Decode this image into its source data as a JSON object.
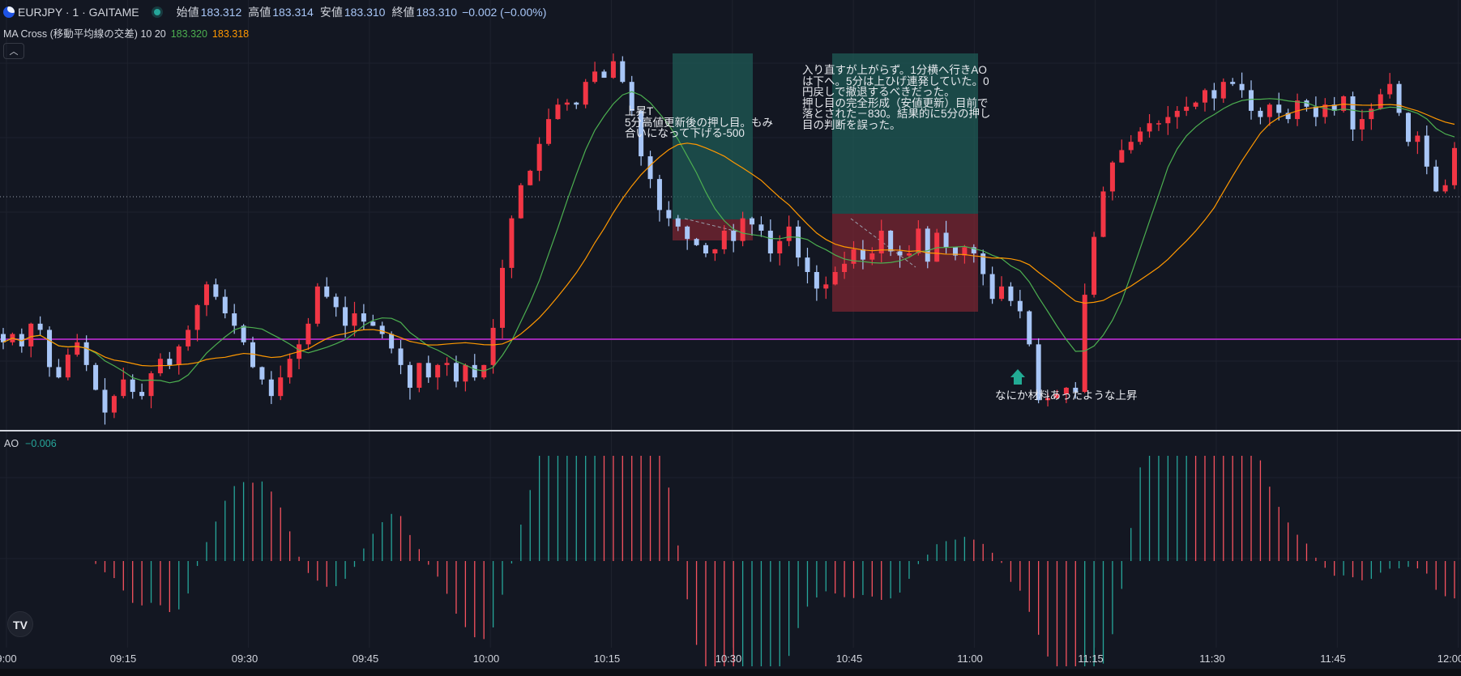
{
  "header": {
    "symbol": "EURJPY · 1 · GAITAME",
    "open_label": "始値",
    "open_value": "183.312",
    "high_label": "高値",
    "high_value": "183.314",
    "low_label": "安値",
    "low_value": "183.310",
    "close_label": "終値",
    "close_value": "183.310",
    "change": "−0.002 (−0.00%)"
  },
  "indicator": {
    "name": "MA Cross (移動平均線の交差) 10 20",
    "fast_value": "183.320",
    "slow_value": "183.318",
    "fast_color": "#4caf50",
    "slow_color": "#ff9800"
  },
  "collapse_icon": "chevron-up-icon",
  "notes": {
    "note1": "上昇T\n5分高値更新後の押し目。もみ\n合いになって下げる-500",
    "note2": "入り直すが上がらず。1分横へ行きAO\nは下へ。5分は上ひげ連発していた。0\n円戻しで撤退するべきだった。\n押し目の完全形成（安値更新）目前で\n落とされた－830。結果的に5分の押し\n目の判断を誤った。",
    "note3": "なにか材料あったような上昇"
  },
  "ao": {
    "label": "AO",
    "value": "−0.006"
  },
  "time_axis": [
    "9:00",
    "09:15",
    "09:30",
    "09:45",
    "10:00",
    "10:15",
    "10:30",
    "10:45",
    "11:00",
    "11:15",
    "11:30",
    "11:45",
    "12:00"
  ],
  "colors": {
    "background": "#131722",
    "candle_up": "#f23645",
    "candle_down": "#a8c6f7",
    "ao_up": "#26a69a",
    "ao_down": "#f7525f",
    "support_line": "#9c27b0",
    "long_target": "#1f5b56",
    "short_stop": "#7a2632"
  },
  "chart_data": {
    "type": "candlestick",
    "close_series": [
      183.262,
      183.266,
      183.26,
      183.271,
      183.268,
      183.25,
      183.245,
      183.256,
      183.262,
      183.251,
      183.239,
      183.228,
      183.236,
      183.244,
      183.238,
      183.236,
      183.247,
      183.254,
      183.251,
      183.26,
      183.268,
      183.28,
      183.29,
      183.284,
      183.276,
      183.27,
      183.262,
      183.25,
      183.244,
      183.236,
      183.245,
      183.254,
      183.261,
      183.271,
      183.289,
      183.284,
      183.279,
      183.27,
      183.276,
      183.272,
      183.27,
      183.266,
      183.259,
      183.251,
      183.24,
      183.252,
      183.245,
      183.251,
      183.252,
      183.243,
      183.251,
      183.245,
      183.251,
      183.269,
      183.298,
      183.322,
      183.338,
      183.345,
      183.358,
      183.37,
      183.377,
      183.378,
      183.377,
      183.388,
      183.393,
      183.39,
      183.398,
      183.388,
      183.374,
      183.352,
      183.341,
      183.326,
      183.322,
      183.318,
      183.312,
      183.309,
      183.305,
      183.307,
      183.316,
      183.311,
      183.322,
      183.319,
      183.316,
      183.305,
      183.311,
      183.318,
      183.303,
      183.296,
      183.288,
      183.29,
      183.296,
      183.3,
      183.307,
      183.302,
      183.305,
      183.316,
      183.306,
      183.304,
      183.305,
      183.317,
      183.301,
      183.315,
      183.308,
      183.304,
      183.308,
      183.305,
      183.295,
      183.283,
      183.289,
      183.282,
      183.277,
      183.261,
      183.234,
      183.235,
      183.237,
      183.24,
      183.238,
      183.285,
      183.313,
      183.335,
      183.349,
      183.355,
      183.359,
      183.364,
      183.368,
      183.368,
      183.371,
      183.374,
      183.376,
      183.378,
      183.384,
      183.38,
      183.388,
      183.387,
      183.384,
      183.374,
      183.371,
      183.377,
      183.373,
      183.37,
      183.379,
      183.376,
      183.371,
      183.377,
      183.374,
      183.381,
      183.365,
      183.37,
      183.375,
      183.382,
      183.387,
      183.373,
      183.359,
      183.362,
      183.347,
      183.335,
      183.338,
      183.356
    ],
    "support_level": "purple horizontal line",
    "y_range": [
      183.22,
      183.41
    ]
  }
}
